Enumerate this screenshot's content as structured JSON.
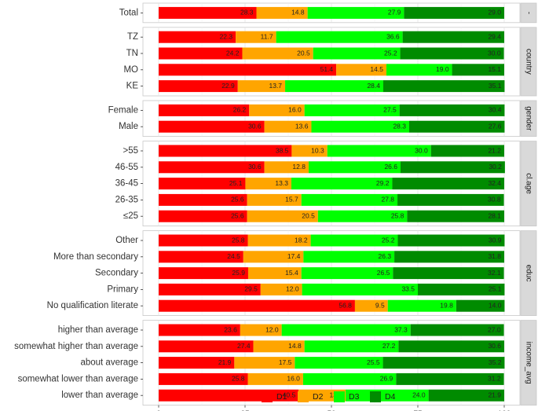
{
  "chart_data": {
    "type": "bar",
    "orientation": "horizontal",
    "stacked": true,
    "faceted": true,
    "xlim": [
      0,
      100
    ],
    "x_ticks": [
      "0",
      "25",
      "50",
      "75",
      "100"
    ],
    "grid": true,
    "legend_position": "bottom",
    "legend": [
      {
        "name": "D1",
        "color": "#ff0000"
      },
      {
        "name": "D2",
        "color": "#ffa500"
      },
      {
        "name": "D3",
        "color": "#00ff00"
      },
      {
        "name": "D4",
        "color": "#008b00"
      }
    ],
    "panels": [
      {
        "strip": "-",
        "rows": [
          {
            "label": "Total",
            "values": [
              28.3,
              14.8,
              27.9,
              29.0
            ],
            "labels": [
              "28.3",
              "14.8",
              "27.9",
              "29.0"
            ]
          }
        ]
      },
      {
        "strip": "country",
        "rows": [
          {
            "label": "TZ",
            "values": [
              22.3,
              11.7,
              36.6,
              29.4
            ],
            "labels": [
              "22.3",
              "11.7",
              "36.6",
              "29.4"
            ]
          },
          {
            "label": "TN",
            "values": [
              24.2,
              20.5,
              25.2,
              30.0
            ],
            "labels": [
              "24.2",
              "20.5",
              "25.2",
              "30.0"
            ]
          },
          {
            "label": "MO",
            "values": [
              51.4,
              14.5,
              19.0,
              15.1
            ],
            "labels": [
              "51.4",
              "14.5",
              "19.0",
              "15.1"
            ]
          },
          {
            "label": "KE",
            "values": [
              22.9,
              13.7,
              28.4,
              35.1
            ],
            "labels": [
              "22.9",
              "13.7",
              "28.4",
              "35.1"
            ]
          }
        ]
      },
      {
        "strip": "gender",
        "rows": [
          {
            "label": "Female",
            "values": [
              26.2,
              16.0,
              27.5,
              30.4
            ],
            "labels": [
              "26.2",
              "16.0",
              "27.5",
              "30.4"
            ]
          },
          {
            "label": "Male",
            "values": [
              30.6,
              13.6,
              28.3,
              27.6
            ],
            "labels": [
              "30.6",
              "13.6",
              "28.3",
              "27.6"
            ]
          }
        ]
      },
      {
        "strip": "cl.age",
        "rows": [
          {
            "label": ">55",
            "values": [
              38.5,
              10.3,
              30.0,
              21.2
            ],
            "labels": [
              "38.5",
              "10.3",
              "30.0",
              "21.2"
            ]
          },
          {
            "label": "46-55",
            "values": [
              30.6,
              12.8,
              26.6,
              30.2
            ],
            "labels": [
              "30.6",
              "12.8",
              "26.6",
              "30.2"
            ]
          },
          {
            "label": "36-45",
            "values": [
              25.1,
              13.3,
              29.2,
              32.4
            ],
            "labels": [
              "25.1",
              "13.3",
              "29.2",
              "32.4"
            ]
          },
          {
            "label": "26-35",
            "values": [
              25.6,
              15.7,
              27.8,
              30.8
            ],
            "labels": [
              "25.6",
              "15.7",
              "27.8",
              "30.8"
            ]
          },
          {
            "label": "≤25",
            "values": [
              25.6,
              20.5,
              25.8,
              28.1
            ],
            "labels": [
              "25.6",
              "20.5",
              "25.8",
              "28.1"
            ]
          }
        ]
      },
      {
        "strip": "educ",
        "rows": [
          {
            "label": "Other",
            "values": [
              25.8,
              18.2,
              25.2,
              30.9
            ],
            "labels": [
              "25.8",
              "18.2",
              "25.2",
              "30.9"
            ]
          },
          {
            "label": "More than secondary",
            "values": [
              24.5,
              17.4,
              26.3,
              31.8
            ],
            "labels": [
              "24.5",
              "17.4",
              "26.3",
              "31.8"
            ]
          },
          {
            "label": "Secondary",
            "values": [
              25.9,
              15.4,
              26.5,
              32.1
            ],
            "labels": [
              "25.9",
              "15.4",
              "26.5",
              "32.1"
            ]
          },
          {
            "label": "Primary",
            "values": [
              29.5,
              12.0,
              33.5,
              25.1
            ],
            "labels": [
              "29.5",
              "12.0",
              "33.5",
              "25.1"
            ]
          },
          {
            "label": "No qualification literate",
            "values": [
              56.8,
              9.5,
              19.8,
              14.0
            ],
            "labels": [
              "56.8",
              "9.5",
              "19.8",
              "14.0"
            ]
          }
        ]
      },
      {
        "strip": "income_avg",
        "rows": [
          {
            "label": "higher than average",
            "values": [
              23.6,
              12.0,
              37.3,
              27.0
            ],
            "labels": [
              "23.6",
              "12.0",
              "37.3",
              "27.0"
            ]
          },
          {
            "label": "somewhat higher than average",
            "values": [
              27.4,
              14.8,
              27.2,
              30.6
            ],
            "labels": [
              "27.4",
              "14.8",
              "27.2",
              "30.6"
            ]
          },
          {
            "label": "about average",
            "values": [
              21.9,
              17.5,
              25.5,
              35.2
            ],
            "labels": [
              "21.9",
              "17.5",
              "25.5",
              "35.2"
            ]
          },
          {
            "label": "somewhat lower than average",
            "values": [
              25.8,
              16.0,
              26.9,
              31.2
            ],
            "labels": [
              "25.8",
              "16.0",
              "26.9",
              "31.2"
            ]
          },
          {
            "label": "lower than average",
            "values": [
              40.5,
              13.6,
              24.0,
              21.9
            ],
            "labels": [
              "40.5",
              "13.6",
              "24.0",
              "21.9"
            ]
          }
        ]
      }
    ]
  }
}
